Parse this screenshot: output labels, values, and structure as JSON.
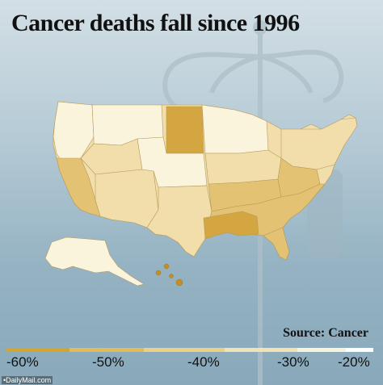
{
  "title": "Cancer deaths fall since 1996",
  "source": "Source: Cancer",
  "credit": "•DailyMail.com",
  "legend": {
    "ticks": [
      "-60%",
      "-50%",
      "-40%",
      "-30%",
      "-20%"
    ],
    "colors": [
      "#d2a62e",
      "#e0bb58",
      "#ebd185",
      "#f3e3b4",
      "#faf3dc",
      "#ffffff"
    ]
  },
  "map_colors": {
    "lightest": "#fbf4dd",
    "light": "#f1deaa",
    "medium": "#e3c274",
    "dark": "#d3a641",
    "darkest": "#c48f22"
  }
}
